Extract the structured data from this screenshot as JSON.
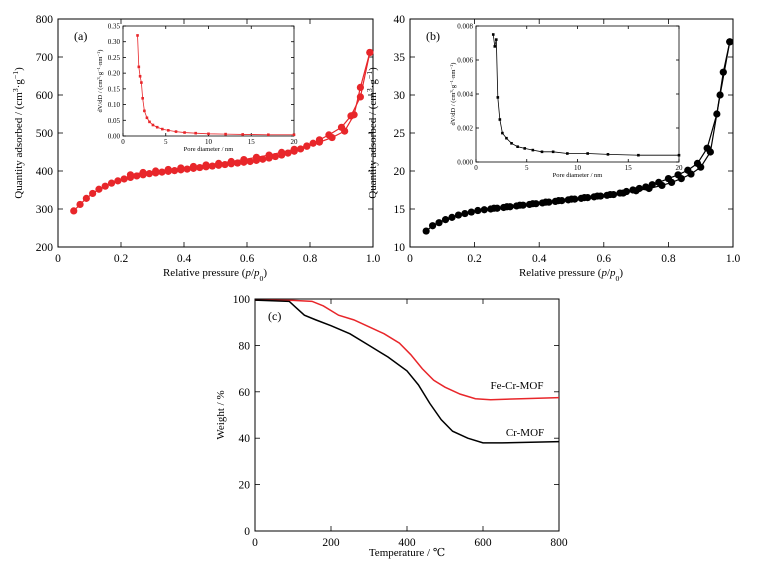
{
  "figure": {
    "panel_labels": [
      "(a)",
      "(b)",
      "(c)"
    ],
    "colors": {
      "red": "#e8262a",
      "black": "#000000"
    }
  },
  "chart_data": [
    {
      "id": "a",
      "type": "line",
      "panel": "(a)",
      "xlabel_parts": [
        "Relative pressure (",
        "p",
        "/",
        "p",
        "0",
        ")"
      ],
      "ylabel_parts": [
        "Quantity adsorbed / (cm",
        "3",
        "·g",
        "−1",
        ")"
      ],
      "xlim": [
        0,
        1.0
      ],
      "ylim": [
        200,
        800
      ],
      "xticks": [
        0,
        0.2,
        0.4,
        0.6,
        0.8,
        1.0
      ],
      "xtick_labels": [
        "0",
        "0.2",
        "0.4",
        "0.6",
        "0.8",
        "1.0"
      ],
      "yticks": [
        200,
        300,
        400,
        500,
        600,
        700,
        800
      ],
      "ytick_labels": [
        "200",
        "300",
        "400",
        "500",
        "600",
        "700",
        "800"
      ],
      "color": "#e8262a",
      "marker": "circle",
      "series": [
        {
          "values": [
            [
              0.05,
              295
            ],
            [
              0.07,
              312
            ],
            [
              0.09,
              328
            ],
            [
              0.11,
              341
            ],
            [
              0.13,
              352
            ],
            [
              0.15,
              360
            ],
            [
              0.17,
              368
            ],
            [
              0.19,
              374
            ],
            [
              0.21,
              379
            ],
            [
              0.23,
              383
            ],
            [
              0.25,
              387
            ],
            [
              0.27,
              390
            ],
            [
              0.29,
              393
            ],
            [
              0.31,
              395
            ],
            [
              0.33,
              397
            ],
            [
              0.35,
              399
            ],
            [
              0.37,
              401
            ],
            [
              0.39,
              403
            ],
            [
              0.41,
              405
            ],
            [
              0.43,
              407
            ],
            [
              0.45,
              409
            ],
            [
              0.47,
              411
            ],
            [
              0.49,
              413
            ],
            [
              0.51,
              415
            ],
            [
              0.53,
              417
            ],
            [
              0.55,
              419
            ],
            [
              0.57,
              421
            ],
            [
              0.59,
              423
            ],
            [
              0.61,
              425
            ],
            [
              0.63,
              428
            ],
            [
              0.65,
              431
            ],
            [
              0.67,
              434
            ],
            [
              0.69,
              438
            ],
            [
              0.71,
              442
            ],
            [
              0.73,
              447
            ],
            [
              0.75,
              452
            ],
            [
              0.77,
              458
            ],
            [
              0.79,
              465
            ],
            [
              0.81,
              473
            ],
            [
              0.83,
              482
            ],
            [
              0.86,
              495
            ],
            [
              0.9,
              515
            ],
            [
              0.93,
              545
            ],
            [
              0.96,
              595
            ],
            [
              0.99,
              712
            ]
          ]
        },
        {
          "values": [
            [
              0.99,
              712
            ],
            [
              0.96,
              620
            ],
            [
              0.94,
              548
            ],
            [
              0.91,
              505
            ],
            [
              0.87,
              488
            ],
            [
              0.83,
              476
            ],
            [
              0.79,
              466
            ],
            [
              0.75,
              457
            ],
            [
              0.71,
              449
            ],
            [
              0.67,
              442
            ],
            [
              0.63,
              436
            ],
            [
              0.59,
              430
            ],
            [
              0.55,
              425
            ],
            [
              0.51,
              420
            ],
            [
              0.47,
              416
            ],
            [
              0.43,
              412
            ],
            [
              0.39,
              408
            ],
            [
              0.35,
              404
            ],
            [
              0.31,
              400
            ],
            [
              0.27,
              396
            ],
            [
              0.23,
              390
            ]
          ]
        }
      ],
      "inset": {
        "xlabel": "Pore diameter / nm",
        "ylabel_parts": [
          "dV/dD / (cm",
          "3",
          "·g",
          "−1",
          "·nm",
          "−1",
          ")"
        ],
        "xlim": [
          0,
          20
        ],
        "ylim": [
          0,
          0.35
        ],
        "xticks": [
          0,
          5,
          10,
          15,
          20
        ],
        "xtick_labels": [
          "0",
          "5",
          "10",
          "15",
          "20"
        ],
        "yticks": [
          0,
          0.05,
          0.1,
          0.15,
          0.2,
          0.25,
          0.3,
          0.35
        ],
        "ytick_labels": [
          "0.00",
          "0.05",
          "0.10",
          "0.15",
          "0.20",
          "0.25",
          "0.30",
          "0.35"
        ],
        "values": [
          [
            1.7,
            0.32
          ],
          [
            1.85,
            0.22
          ],
          [
            2.0,
            0.19
          ],
          [
            2.15,
            0.17
          ],
          [
            2.3,
            0.12
          ],
          [
            2.5,
            0.08
          ],
          [
            2.8,
            0.058
          ],
          [
            3.1,
            0.045
          ],
          [
            3.5,
            0.035
          ],
          [
            4,
            0.028
          ],
          [
            4.6,
            0.022
          ],
          [
            5.3,
            0.018
          ],
          [
            6.2,
            0.014
          ],
          [
            7.2,
            0.011
          ],
          [
            8.5,
            0.009
          ],
          [
            10,
            0.007
          ],
          [
            12,
            0.006
          ],
          [
            14,
            0.005
          ],
          [
            17,
            0.004
          ],
          [
            20,
            0.004
          ]
        ]
      }
    },
    {
      "id": "b",
      "type": "line",
      "panel": "(b)",
      "xlabel_parts": [
        "Relative pressure (",
        "p",
        "/",
        "p",
        "0",
        ")"
      ],
      "ylabel_parts": [
        "Quantity adsorbed / (cm",
        "3",
        "·g",
        "−1",
        ")"
      ],
      "xlim": [
        0,
        1.0
      ],
      "ylim": [
        10,
        40
      ],
      "xticks": [
        0,
        0.2,
        0.4,
        0.6,
        0.8,
        1.0
      ],
      "xtick_labels": [
        "0",
        "0.2",
        "0.4",
        "0.6",
        "0.8",
        "1.0"
      ],
      "yticks": [
        10,
        15,
        20,
        25,
        30,
        35,
        40
      ],
      "ytick_labels": [
        "10",
        "15",
        "20",
        "25",
        "30",
        "35",
        "40"
      ],
      "color": "#000000",
      "marker": "circle",
      "series": [
        {
          "values": [
            [
              0.05,
              12.1
            ],
            [
              0.07,
              12.8
            ],
            [
              0.09,
              13.2
            ],
            [
              0.11,
              13.6
            ],
            [
              0.13,
              13.9
            ],
            [
              0.15,
              14.2
            ],
            [
              0.17,
              14.4
            ],
            [
              0.19,
              14.6
            ],
            [
              0.21,
              14.8
            ],
            [
              0.23,
              14.9
            ],
            [
              0.25,
              15.0
            ],
            [
              0.27,
              15.1
            ],
            [
              0.29,
              15.2
            ],
            [
              0.31,
              15.3
            ],
            [
              0.33,
              15.4
            ],
            [
              0.35,
              15.5
            ],
            [
              0.37,
              15.6
            ],
            [
              0.39,
              15.7
            ],
            [
              0.41,
              15.8
            ],
            [
              0.43,
              15.9
            ],
            [
              0.45,
              16.0
            ],
            [
              0.47,
              16.1
            ],
            [
              0.49,
              16.2
            ],
            [
              0.51,
              16.3
            ],
            [
              0.53,
              16.4
            ],
            [
              0.55,
              16.5
            ],
            [
              0.57,
              16.6
            ],
            [
              0.59,
              16.7
            ],
            [
              0.61,
              16.8
            ],
            [
              0.63,
              16.9
            ],
            [
              0.65,
              17.1
            ],
            [
              0.67,
              17.3
            ],
            [
              0.69,
              17.5
            ],
            [
              0.71,
              17.7
            ],
            [
              0.73,
              17.9
            ],
            [
              0.75,
              18.2
            ],
            [
              0.77,
              18.5
            ],
            [
              0.8,
              19.0
            ],
            [
              0.83,
              19.5
            ],
            [
              0.86,
              20.1
            ],
            [
              0.89,
              21.0
            ],
            [
              0.92,
              23.0
            ],
            [
              0.95,
              27.5
            ],
            [
              0.97,
              33.0
            ],
            [
              0.99,
              37.0
            ]
          ]
        },
        {
          "values": [
            [
              0.99,
              37.0
            ],
            [
              0.96,
              30.0
            ],
            [
              0.93,
              22.5
            ],
            [
              0.9,
              20.5
            ],
            [
              0.87,
              19.6
            ],
            [
              0.84,
              19.0
            ],
            [
              0.81,
              18.5
            ],
            [
              0.78,
              18.1
            ],
            [
              0.74,
              17.7
            ],
            [
              0.7,
              17.4
            ],
            [
              0.66,
              17.1
            ],
            [
              0.62,
              16.9
            ],
            [
              0.58,
              16.7
            ],
            [
              0.54,
              16.5
            ],
            [
              0.5,
              16.3
            ],
            [
              0.46,
              16.1
            ],
            [
              0.42,
              15.9
            ],
            [
              0.38,
              15.7
            ],
            [
              0.34,
              15.5
            ],
            [
              0.3,
              15.3
            ],
            [
              0.26,
              15.1
            ]
          ]
        }
      ],
      "inset": {
        "xlabel": "Pore diameter / nm",
        "ylabel_parts": [
          "dV/dD / (cm",
          "3",
          "·g",
          "−1",
          "·nm",
          "−1",
          ")"
        ],
        "xlim": [
          0,
          20
        ],
        "ylim": [
          0,
          0.008
        ],
        "xticks": [
          0,
          5,
          10,
          15,
          20
        ],
        "xtick_labels": [
          "0",
          "5",
          "10",
          "15",
          "20"
        ],
        "yticks": [
          0,
          0.002,
          0.004,
          0.006,
          0.008
        ],
        "ytick_labels": [
          "0.000",
          "0.002",
          "0.004",
          "0.006",
          "0.008"
        ],
        "values": [
          [
            1.7,
            0.0075
          ],
          [
            1.85,
            0.0068
          ],
          [
            2.0,
            0.0072
          ],
          [
            2.15,
            0.0038
          ],
          [
            2.35,
            0.0025
          ],
          [
            2.6,
            0.0017
          ],
          [
            3.0,
            0.0014
          ],
          [
            3.5,
            0.0011
          ],
          [
            4.1,
            0.0009
          ],
          [
            4.8,
            0.0008
          ],
          [
            5.6,
            0.0007
          ],
          [
            6.5,
            0.0006
          ],
          [
            7.6,
            0.0006
          ],
          [
            9,
            0.0005
          ],
          [
            11,
            0.0005
          ],
          [
            13,
            0.00045
          ],
          [
            16,
            0.0004
          ],
          [
            20,
            0.0004
          ]
        ]
      }
    },
    {
      "id": "c",
      "type": "line",
      "panel": "(c)",
      "xlabel": "Temperature / ℃",
      "ylabel": "Weight / %",
      "xlim": [
        0,
        800
      ],
      "ylim": [
        0,
        100
      ],
      "xticks": [
        0,
        200,
        400,
        600,
        800
      ],
      "xtick_labels": [
        "0",
        "200",
        "400",
        "600",
        "800"
      ],
      "yticks": [
        0,
        20,
        40,
        60,
        80,
        100
      ],
      "ytick_labels": [
        "0",
        "20",
        "40",
        "60",
        "80",
        "100"
      ],
      "series": [
        {
          "name": "Fe-Cr-MOF",
          "color": "#e8262a",
          "values": [
            [
              0,
              99.5
            ],
            [
              100,
              99.4
            ],
            [
              150,
              99
            ],
            [
              180,
              97
            ],
            [
              220,
              93
            ],
            [
              260,
              91
            ],
            [
              300,
              88
            ],
            [
              340,
              85
            ],
            [
              380,
              81
            ],
            [
              410,
              76
            ],
            [
              440,
              70
            ],
            [
              470,
              65
            ],
            [
              500,
              62
            ],
            [
              540,
              59
            ],
            [
              580,
              57
            ],
            [
              620,
              56.6
            ],
            [
              700,
              57
            ],
            [
              800,
              57.5
            ]
          ]
        },
        {
          "name": "Cr-MOF",
          "color": "#000000",
          "values": [
            [
              0,
              99.5
            ],
            [
              90,
              99
            ],
            [
              110,
              96
            ],
            [
              130,
              93
            ],
            [
              160,
              91
            ],
            [
              200,
              88.5
            ],
            [
              250,
              85
            ],
            [
              300,
              80
            ],
            [
              350,
              75
            ],
            [
              400,
              69
            ],
            [
              430,
              63
            ],
            [
              460,
              55
            ],
            [
              490,
              48
            ],
            [
              520,
              43
            ],
            [
              560,
              40
            ],
            [
              600,
              38
            ],
            [
              650,
              38
            ],
            [
              800,
              38.5
            ]
          ]
        }
      ]
    }
  ]
}
